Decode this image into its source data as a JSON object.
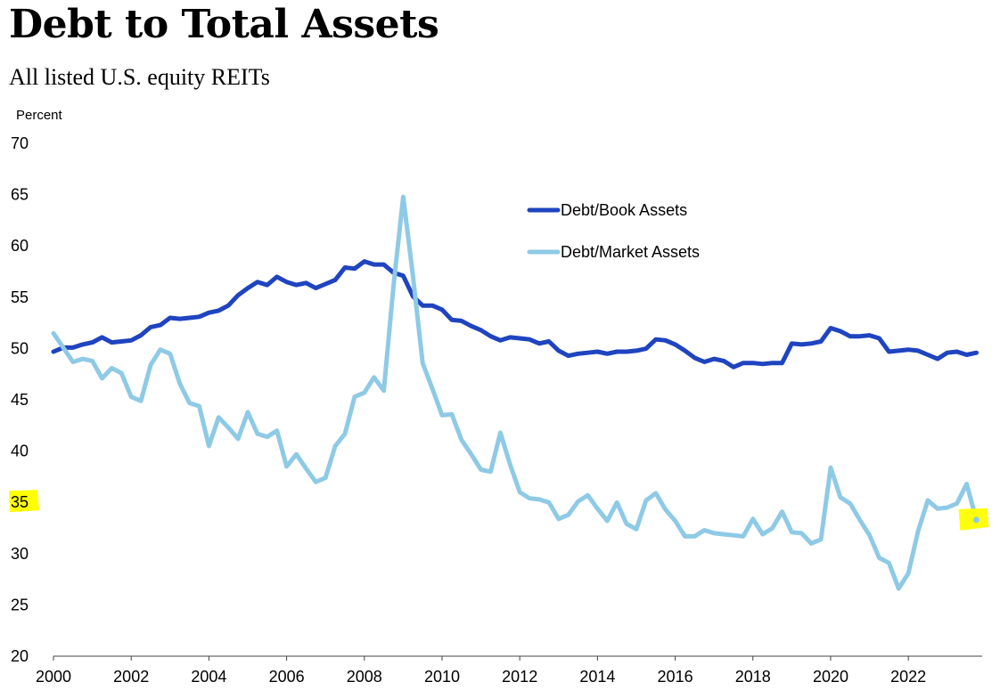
{
  "chart_data": {
    "type": "line",
    "title": "Debt to Total Assets",
    "subtitle": "All listed U.S. equity REITs",
    "ylabel": "Percent",
    "xlabel": "",
    "ylim": [
      20,
      70
    ],
    "xlim": [
      2000,
      2023.9
    ],
    "yticks": [
      20,
      25,
      30,
      35,
      40,
      45,
      50,
      55,
      60,
      65,
      70
    ],
    "xticks": [
      2000,
      2002,
      2004,
      2006,
      2008,
      2010,
      2012,
      2014,
      2016,
      2018,
      2020,
      2022
    ],
    "grid": false,
    "legend_position": "upper-center",
    "highlights": [
      {
        "target": "y-tick",
        "value": 35,
        "color": "#ffff00"
      },
      {
        "target": "last-point",
        "series": "Debt/Market Assets",
        "color": "#ffff00"
      }
    ],
    "series": [
      {
        "name": "Debt/Book Assets",
        "color": "#1f44c0",
        "points": [
          [
            2000.0,
            49.6
          ],
          [
            2000.25,
            50.0
          ],
          [
            2000.5,
            50.0
          ],
          [
            2000.75,
            50.3
          ],
          [
            2001.0,
            50.5
          ],
          [
            2001.25,
            51.0
          ],
          [
            2001.5,
            50.5
          ],
          [
            2001.75,
            50.6
          ],
          [
            2002.0,
            50.7
          ],
          [
            2002.25,
            51.2
          ],
          [
            2002.5,
            52.0
          ],
          [
            2002.75,
            52.2
          ],
          [
            2003.0,
            52.9
          ],
          [
            2003.25,
            52.8
          ],
          [
            2003.5,
            52.9
          ],
          [
            2003.75,
            53.0
          ],
          [
            2004.0,
            53.4
          ],
          [
            2004.25,
            53.6
          ],
          [
            2004.5,
            54.1
          ],
          [
            2004.75,
            55.1
          ],
          [
            2005.0,
            55.8
          ],
          [
            2005.25,
            56.4
          ],
          [
            2005.5,
            56.1
          ],
          [
            2005.75,
            56.9
          ],
          [
            2006.0,
            56.4
          ],
          [
            2006.25,
            56.1
          ],
          [
            2006.5,
            56.3
          ],
          [
            2006.75,
            55.8
          ],
          [
            2007.0,
            56.2
          ],
          [
            2007.25,
            56.6
          ],
          [
            2007.5,
            57.8
          ],
          [
            2007.75,
            57.7
          ],
          [
            2008.0,
            58.4
          ],
          [
            2008.25,
            58.1
          ],
          [
            2008.5,
            58.1
          ],
          [
            2008.75,
            57.3
          ],
          [
            2009.0,
            57.0
          ],
          [
            2009.25,
            55.0
          ],
          [
            2009.5,
            54.1
          ],
          [
            2009.75,
            54.1
          ],
          [
            2010.0,
            53.7
          ],
          [
            2010.25,
            52.7
          ],
          [
            2010.5,
            52.6
          ],
          [
            2010.75,
            52.1
          ],
          [
            2011.0,
            51.7
          ],
          [
            2011.25,
            51.1
          ],
          [
            2011.5,
            50.7
          ],
          [
            2011.75,
            51.0
          ],
          [
            2012.0,
            50.9
          ],
          [
            2012.25,
            50.8
          ],
          [
            2012.5,
            50.4
          ],
          [
            2012.75,
            50.6
          ],
          [
            2013.0,
            49.7
          ],
          [
            2013.25,
            49.2
          ],
          [
            2013.5,
            49.4
          ],
          [
            2013.75,
            49.5
          ],
          [
            2014.0,
            49.6
          ],
          [
            2014.25,
            49.4
          ],
          [
            2014.5,
            49.6
          ],
          [
            2014.75,
            49.6
          ],
          [
            2015.0,
            49.7
          ],
          [
            2015.25,
            49.9
          ],
          [
            2015.5,
            50.8
          ],
          [
            2015.75,
            50.7
          ],
          [
            2016.0,
            50.3
          ],
          [
            2016.25,
            49.7
          ],
          [
            2016.5,
            49.0
          ],
          [
            2016.75,
            48.6
          ],
          [
            2017.0,
            48.9
          ],
          [
            2017.25,
            48.7
          ],
          [
            2017.5,
            48.1
          ],
          [
            2017.75,
            48.5
          ],
          [
            2018.0,
            48.5
          ],
          [
            2018.25,
            48.4
          ],
          [
            2018.5,
            48.5
          ],
          [
            2018.75,
            48.5
          ],
          [
            2019.0,
            50.4
          ],
          [
            2019.25,
            50.3
          ],
          [
            2019.5,
            50.4
          ],
          [
            2019.75,
            50.6
          ],
          [
            2020.0,
            51.9
          ],
          [
            2020.25,
            51.6
          ],
          [
            2020.5,
            51.1
          ],
          [
            2020.75,
            51.1
          ],
          [
            2021.0,
            51.2
          ],
          [
            2021.25,
            50.9
          ],
          [
            2021.5,
            49.6
          ],
          [
            2021.75,
            49.7
          ],
          [
            2022.0,
            49.8
          ],
          [
            2022.25,
            49.7
          ],
          [
            2022.5,
            49.3
          ],
          [
            2022.75,
            48.9
          ],
          [
            2023.0,
            49.5
          ],
          [
            2023.25,
            49.6
          ],
          [
            2023.5,
            49.3
          ],
          [
            2023.75,
            49.5
          ]
        ]
      },
      {
        "name": "Debt/Market Assets",
        "color": "#8ecae6",
        "points": [
          [
            2000.0,
            51.4
          ],
          [
            2000.25,
            50.0
          ],
          [
            2000.5,
            48.6
          ],
          [
            2000.75,
            48.9
          ],
          [
            2001.0,
            48.7
          ],
          [
            2001.25,
            47.0
          ],
          [
            2001.5,
            48.0
          ],
          [
            2001.75,
            47.5
          ],
          [
            2002.0,
            45.2
          ],
          [
            2002.25,
            44.8
          ],
          [
            2002.5,
            48.3
          ],
          [
            2002.75,
            49.8
          ],
          [
            2003.0,
            49.4
          ],
          [
            2003.25,
            46.5
          ],
          [
            2003.5,
            44.6
          ],
          [
            2003.75,
            44.3
          ],
          [
            2004.0,
            40.4
          ],
          [
            2004.25,
            43.2
          ],
          [
            2004.5,
            42.2
          ],
          [
            2004.75,
            41.1
          ],
          [
            2005.0,
            43.7
          ],
          [
            2005.25,
            41.6
          ],
          [
            2005.5,
            41.3
          ],
          [
            2005.75,
            41.9
          ],
          [
            2006.0,
            38.4
          ],
          [
            2006.25,
            39.6
          ],
          [
            2006.5,
            38.2
          ],
          [
            2006.75,
            36.9
          ],
          [
            2007.0,
            37.3
          ],
          [
            2007.25,
            40.4
          ],
          [
            2007.5,
            41.6
          ],
          [
            2007.75,
            45.2
          ],
          [
            2008.0,
            45.6
          ],
          [
            2008.25,
            47.1
          ],
          [
            2008.5,
            45.8
          ],
          [
            2008.75,
            56.0
          ],
          [
            2009.0,
            64.7
          ],
          [
            2009.25,
            57.0
          ],
          [
            2009.5,
            48.5
          ],
          [
            2009.75,
            46.0
          ],
          [
            2010.0,
            43.4
          ],
          [
            2010.25,
            43.5
          ],
          [
            2010.5,
            41.0
          ],
          [
            2010.75,
            39.6
          ],
          [
            2011.0,
            38.1
          ],
          [
            2011.25,
            37.9
          ],
          [
            2011.5,
            41.7
          ],
          [
            2011.75,
            38.6
          ],
          [
            2012.0,
            35.9
          ],
          [
            2012.25,
            35.3
          ],
          [
            2012.5,
            35.2
          ],
          [
            2012.75,
            34.9
          ],
          [
            2013.0,
            33.3
          ],
          [
            2013.25,
            33.7
          ],
          [
            2013.5,
            35.0
          ],
          [
            2013.75,
            35.6
          ],
          [
            2014.0,
            34.3
          ],
          [
            2014.25,
            33.1
          ],
          [
            2014.5,
            34.9
          ],
          [
            2014.75,
            32.8
          ],
          [
            2015.0,
            32.3
          ],
          [
            2015.25,
            35.1
          ],
          [
            2015.5,
            35.8
          ],
          [
            2015.75,
            34.2
          ],
          [
            2016.0,
            33.1
          ],
          [
            2016.25,
            31.6
          ],
          [
            2016.5,
            31.6
          ],
          [
            2016.75,
            32.2
          ],
          [
            2017.0,
            31.9
          ],
          [
            2017.25,
            31.8
          ],
          [
            2017.5,
            31.7
          ],
          [
            2017.75,
            31.6
          ],
          [
            2018.0,
            33.3
          ],
          [
            2018.25,
            31.8
          ],
          [
            2018.5,
            32.4
          ],
          [
            2018.75,
            34.0
          ],
          [
            2019.0,
            32.0
          ],
          [
            2019.25,
            31.9
          ],
          [
            2019.5,
            30.9
          ],
          [
            2019.75,
            31.3
          ],
          [
            2020.0,
            38.3
          ],
          [
            2020.25,
            35.4
          ],
          [
            2020.5,
            34.8
          ],
          [
            2020.75,
            33.2
          ],
          [
            2021.0,
            31.7
          ],
          [
            2021.25,
            29.5
          ],
          [
            2021.5,
            29.0
          ],
          [
            2021.75,
            26.5
          ],
          [
            2022.0,
            28.0
          ],
          [
            2022.25,
            32.1
          ],
          [
            2022.5,
            35.1
          ],
          [
            2022.75,
            34.3
          ],
          [
            2023.0,
            34.4
          ],
          [
            2023.25,
            34.8
          ],
          [
            2023.5,
            36.7
          ],
          [
            2023.75,
            33.2
          ]
        ]
      }
    ]
  }
}
